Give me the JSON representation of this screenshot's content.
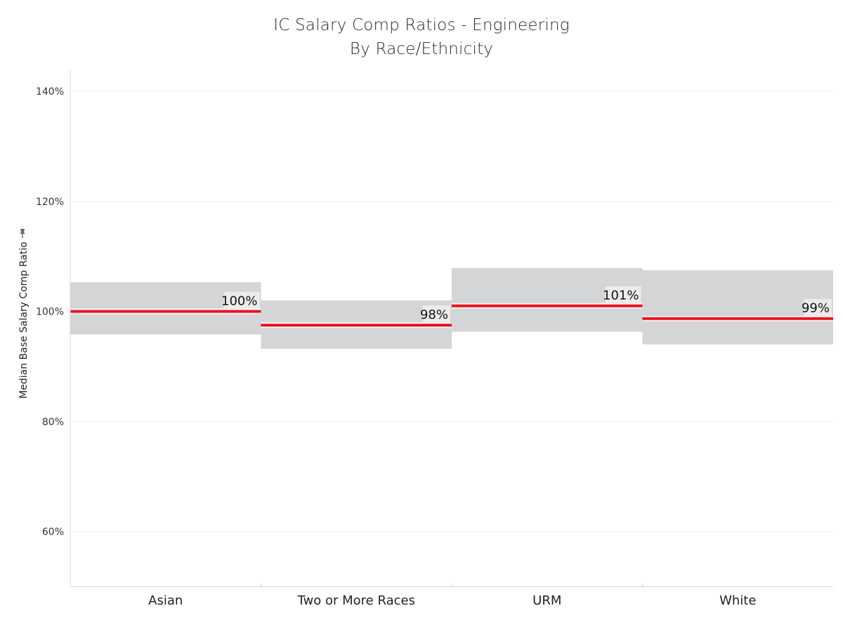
{
  "chart_data": {
    "type": "bar",
    "title": "IC Salary Comp Ratios - Engineering",
    "subtitle": "By Race/Ethnicity",
    "xlabel": "",
    "ylabel": "Median Base Salary Comp Ratio",
    "ylim": [
      50,
      141
    ],
    "y_ticks": [
      60,
      80,
      100,
      120,
      140
    ],
    "y_tick_labels": [
      "60%",
      "80%",
      "100%",
      "120%",
      "140%"
    ],
    "categories": [
      "Asian",
      "Two or More Races",
      "URM",
      "White"
    ],
    "series": [
      {
        "values": [
          100,
          97.5,
          101,
          98.7
        ]
      }
    ],
    "ranges": [
      {
        "low": 95.8,
        "high": 105.3
      },
      {
        "low": 93.2,
        "high": 102.0
      },
      {
        "low": 96.3,
        "high": 107.9
      },
      {
        "low": 94.0,
        "high": 107.5
      }
    ],
    "data_labels": [
      "100%",
      "98%",
      "101%",
      "99%"
    ],
    "grid": true,
    "colors": {
      "median": "#e8141c",
      "band": "#d4d5d7",
      "grid": "#ececec",
      "axis": "#d9d9d9"
    },
    "icon": "pin-icon"
  }
}
